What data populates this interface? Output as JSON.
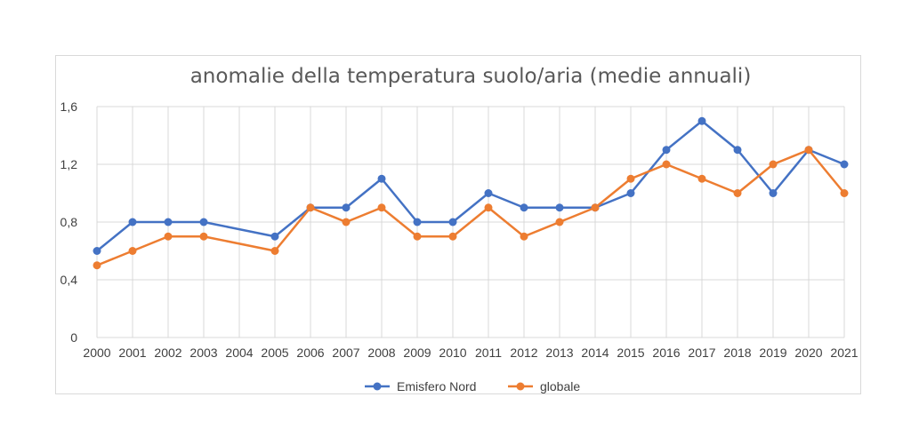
{
  "chart_data": {
    "type": "line",
    "title": "anomalie della temperatura suolo/aria (medie annuali)",
    "xlabel": "",
    "ylabel": "",
    "ylim": [
      0,
      1.6
    ],
    "yticks": [
      "0",
      "0,4",
      "0,8",
      "1,2",
      "1,6"
    ],
    "categories": [
      "2000",
      "2001",
      "2002",
      "2003",
      "2004",
      "2005",
      "2006",
      "2007",
      "2008",
      "2009",
      "2010",
      "2011",
      "2012",
      "2013",
      "2014",
      "2015",
      "2016",
      "2017",
      "2018",
      "2019",
      "2020",
      "2021"
    ],
    "grid": true,
    "legend_position": "bottom",
    "series": [
      {
        "name": "Emisfero Nord",
        "color": "#4472C4",
        "values": [
          0.6,
          0.8,
          0.8,
          0.8,
          null,
          0.7,
          0.9,
          0.9,
          1.1,
          0.8,
          0.8,
          1.0,
          0.9,
          0.9,
          0.9,
          1.0,
          1.3,
          1.5,
          1.3,
          1.0,
          1.3,
          1.2
        ]
      },
      {
        "name": "globale",
        "color": "#ED7D31",
        "values": [
          0.5,
          0.6,
          0.7,
          0.7,
          null,
          0.6,
          0.9,
          0.8,
          0.9,
          0.7,
          0.7,
          0.9,
          0.7,
          0.8,
          0.9,
          1.1,
          1.2,
          1.1,
          1.0,
          1.2,
          1.3,
          1.0
        ]
      }
    ]
  }
}
